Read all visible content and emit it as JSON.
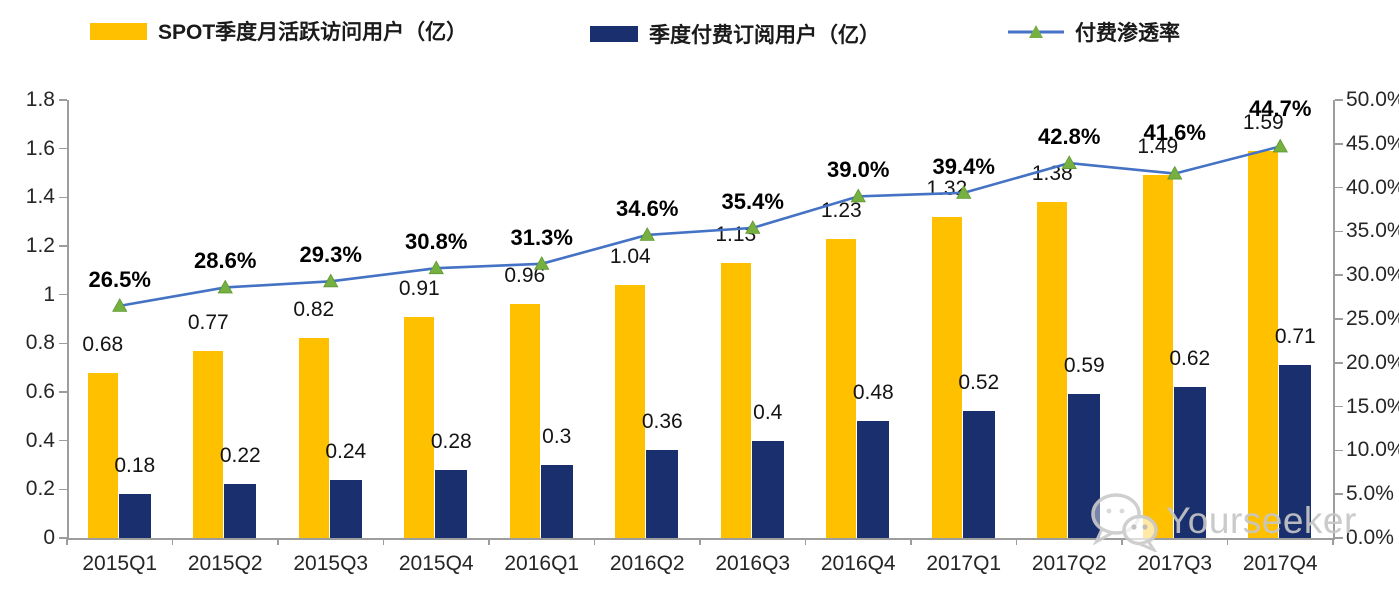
{
  "legend": {
    "items": [
      {
        "label": "SPOT季度月活跃访问用户（亿）",
        "swatch": "bar",
        "color": "#FFC000"
      },
      {
        "label": "季度付费订阅用户（亿）",
        "swatch": "bar",
        "color": "#1A2F6E"
      },
      {
        "label": "付费渗透率",
        "swatch": "line",
        "color": "#4472C4",
        "marker_color": "#76B041"
      }
    ]
  },
  "watermark": {
    "text": "Yourseeker",
    "icon": "wechat-icon",
    "color": "#c6c6c6"
  },
  "colors": {
    "mau_bar": "#FFC000",
    "paid_bar": "#1A2F6E",
    "line": "#4472C4",
    "marker": "#76B041",
    "marker_edge": "#5E9732",
    "axis": "#9d9d9d",
    "text": "#262626"
  },
  "chart_data": {
    "type": "bar",
    "subtype": "combo-bar-line-dual-axis",
    "categories": [
      "2015Q1",
      "2015Q2",
      "2015Q3",
      "2015Q4",
      "2016Q1",
      "2016Q2",
      "2016Q3",
      "2016Q4",
      "2017Q1",
      "2017Q2",
      "2017Q3",
      "2017Q4"
    ],
    "series": [
      {
        "name": "SPOT季度月活跃访问用户（亿）",
        "type": "bar",
        "axis": "left",
        "color": "#FFC000",
        "values": [
          0.68,
          0.77,
          0.82,
          0.91,
          0.96,
          1.04,
          1.13,
          1.23,
          1.32,
          1.38,
          1.49,
          1.59
        ],
        "labels": [
          "0.68",
          "0.77",
          "0.82",
          "0.91",
          "0.96",
          "1.04",
          "1.13",
          "1.23",
          "1.32",
          "1.38",
          "1.49",
          "1.59"
        ]
      },
      {
        "name": "季度付费订阅用户（亿）",
        "type": "bar",
        "axis": "left",
        "color": "#1A2F6E",
        "values": [
          0.18,
          0.22,
          0.24,
          0.28,
          0.3,
          0.36,
          0.4,
          0.48,
          0.52,
          0.59,
          0.62,
          0.71
        ],
        "labels": [
          "0.18",
          "0.22",
          "0.24",
          "0.28",
          "0.3",
          "0.36",
          "0.4",
          "0.48",
          "0.52",
          "0.59",
          "0.62",
          "0.71"
        ]
      },
      {
        "name": "付费渗透率",
        "type": "line",
        "axis": "right",
        "color": "#4472C4",
        "marker": "triangle",
        "marker_color": "#76B041",
        "values": [
          26.5,
          28.6,
          29.3,
          30.8,
          31.3,
          34.6,
          35.4,
          39.0,
          39.4,
          42.8,
          41.6,
          44.7
        ],
        "labels": [
          "26.5%",
          "28.6%",
          "29.3%",
          "30.8%",
          "31.3%",
          "34.6%",
          "35.4%",
          "39.0%",
          "39.4%",
          "42.8%",
          "41.6%",
          "44.7%"
        ]
      }
    ],
    "left_axis": {
      "min": 0,
      "max": 1.8,
      "tick_values": [
        0,
        0.2,
        0.4,
        0.6,
        0.8,
        1,
        1.2,
        1.4,
        1.6,
        1.8
      ],
      "tick_labels": [
        "0",
        "0.2",
        "0.4",
        "0.6",
        "0.8",
        "1",
        "1.2",
        "1.4",
        "1.6",
        "1.8"
      ]
    },
    "right_axis": {
      "min": 0,
      "max": 50,
      "tick_values": [
        0,
        5,
        10,
        15,
        20,
        25,
        30,
        35,
        40,
        45,
        50
      ],
      "tick_labels": [
        "0.0%",
        "5.0%",
        "10.0%",
        "15.0%",
        "20.0%",
        "25.0%",
        "30.0%",
        "35.0%",
        "40.0%",
        "45.0%",
        "50.0%"
      ]
    },
    "grid": false,
    "legend_position": "top",
    "title": "",
    "xlabel": "",
    "ylabel": ""
  }
}
